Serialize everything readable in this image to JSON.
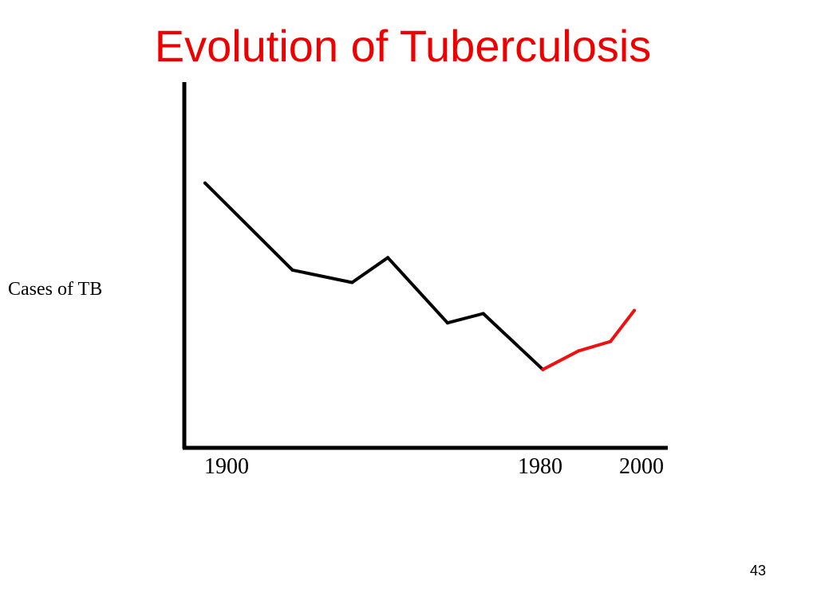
{
  "slide": {
    "title": "Evolution of Tuberculosis",
    "page_number": "43"
  },
  "chart_data": {
    "type": "line",
    "title": "Evolution of Tuberculosis",
    "ylabel": "Cases of TB",
    "xlabel": "",
    "x_tick_labels": [
      "1900",
      "1980",
      "2000"
    ],
    "x_ticks": [
      1900,
      1980,
      2000
    ],
    "xlim": [
      1895,
      2008
    ],
    "y_values_shown": false,
    "ylim": [
      0,
      100
    ],
    "grid": false,
    "legend": "none",
    "series": [
      {
        "color": "#000000",
        "x": [
          1905,
          1927,
          1942,
          1951,
          1966,
          1975,
          1990
        ],
        "y": [
          77,
          49,
          45,
          53,
          32,
          35,
          17
        ]
      },
      {
        "color": "#ee1111",
        "x": [
          1990,
          1999,
          2007,
          2013
        ],
        "y": [
          17,
          23,
          26,
          36
        ]
      }
    ],
    "note": ""
  }
}
